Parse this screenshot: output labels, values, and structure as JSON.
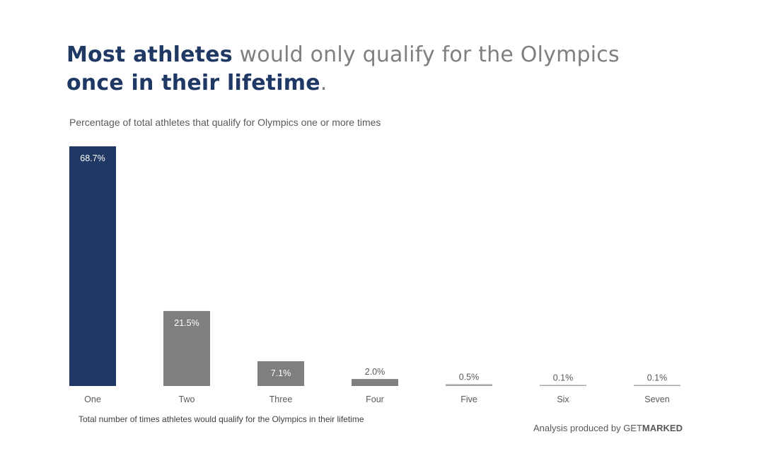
{
  "headline": {
    "part1_strong": "Most athletes",
    "part2": " would only qualify for the Olympics",
    "part3_strong": "once in their lifetime",
    "part4": "."
  },
  "subtitle": "Percentage of total athletes that qualify for Olympics one or more times",
  "footer": {
    "x_title": "Total number of times athletes would qualify for the Olympics in their lifetime",
    "credit_prefix": "Analysis produced by ",
    "credit_brand_light": "GET",
    "credit_brand_bold": "MARKED"
  },
  "colors": {
    "highlight": "#1f3864",
    "bar": "#7f7f7f",
    "light_bar": "#a6a6a6"
  },
  "chart_data": {
    "type": "bar",
    "categories": [
      "One",
      "Two",
      "Three",
      "Four",
      "Five",
      "Six",
      "Seven"
    ],
    "values": [
      68.7,
      21.5,
      7.1,
      2.0,
      0.5,
      0.1,
      0.1
    ],
    "labels": [
      "68.7%",
      "21.5%",
      "7.1%",
      "2.0%",
      "0.5%",
      "0.1%",
      "0.1%"
    ],
    "ylim": [
      0,
      68.7
    ],
    "grid": false,
    "legend": "none"
  }
}
